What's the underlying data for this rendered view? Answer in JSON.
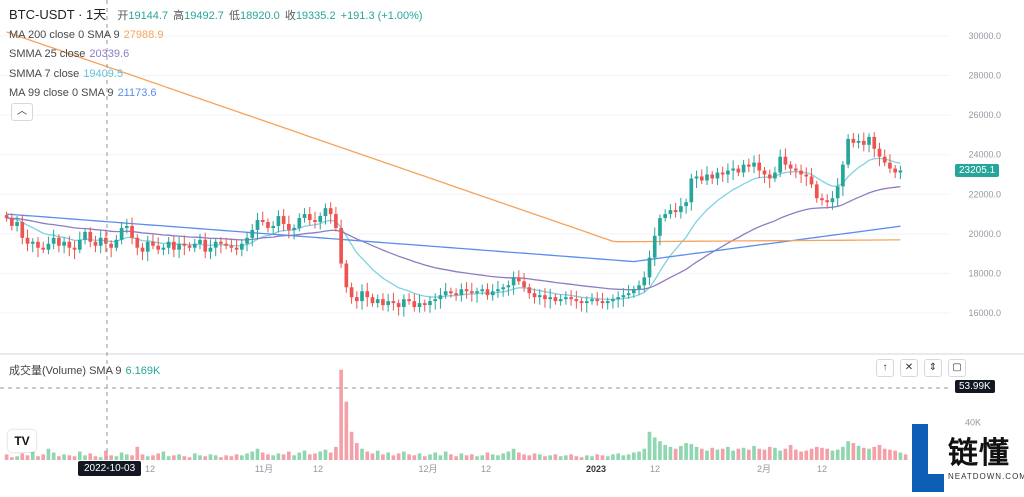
{
  "header": {
    "symbol": "BTC-USDT · 1天",
    "open_label": "开",
    "open": "19144.7",
    "high_label": "高",
    "high": "19492.7",
    "low_label": "低",
    "low": "18920.0",
    "close_label": "收",
    "close": "19335.2",
    "change": "+191.3 (+1.00%)"
  },
  "indicators": [
    {
      "label": "MA 200 close 0 SMA 9",
      "value": "27988.9",
      "color": "#f7a35c"
    },
    {
      "label": "SMMA 25 close",
      "value": "20339.6",
      "color": "#8e7cc3"
    },
    {
      "label": "SMMA 7 close",
      "value": "19409.5",
      "color": "#7ed3e3"
    },
    {
      "label": "MA 99 close 0 SMA 9",
      "value": "21173.6",
      "color": "#5b8def"
    }
  ],
  "collapse_icon": "chevron-up-icon",
  "volume_header": {
    "label": "成交量(Volume)",
    "sma": "SMA 9",
    "value": "6.169K"
  },
  "volume_buttons": [
    "arrow-up-icon",
    "close-icon",
    "collapse-icon",
    "maximize-icon"
  ],
  "price_tag": "23205.1",
  "volume_tag": "53.99K",
  "crosshair_date": "2022-10-03",
  "logo": {
    "mark": "L",
    "cn": "链懂",
    "en": "NEATDOWN.COM"
  },
  "tv_mark": "TV",
  "colors": {
    "up": "#26a69a",
    "down": "#ef5350",
    "up_vol": "#90d7b1",
    "down_vol": "#f4a0a8"
  },
  "chart_data": [
    {
      "type": "candlestick",
      "title": "BTC-USDT · 1天",
      "y_ticks": [
        "30000.0",
        "28000.0",
        "26000.0",
        "24000.0",
        "22000.0",
        "20000.0",
        "18000.0",
        "16000.0"
      ],
      "ylim": [
        14000,
        31000
      ],
      "x_ticks": [
        "12",
        "11月",
        "12",
        "12月",
        "12",
        "2023",
        "12",
        "2月",
        "12"
      ],
      "close": [
        20800,
        20400,
        20600,
        19800,
        19500,
        19600,
        19300,
        19200,
        19500,
        19800,
        19400,
        19600,
        19300,
        19200,
        19700,
        20100,
        19600,
        19400,
        19800,
        19500,
        19300,
        19700,
        20300,
        20400,
        19800,
        19300,
        19100,
        19600,
        19400,
        19200,
        19300,
        19600,
        19200,
        19500,
        19400,
        19300,
        19500,
        19700,
        19100,
        19300,
        19600,
        19500,
        19400,
        19300,
        19200,
        19500,
        19800,
        20200,
        20700,
        20600,
        20300,
        20400,
        20900,
        20500,
        20200,
        20300,
        20800,
        21000,
        20700,
        20600,
        20900,
        21300,
        21000,
        20300,
        18500,
        17300,
        16800,
        16600,
        17100,
        16800,
        16500,
        16700,
        16400,
        16600,
        16500,
        16300,
        16700,
        16600,
        16300,
        16500,
        16400,
        16600,
        16700,
        16900,
        17100,
        17000,
        16900,
        17200,
        17100,
        17000,
        17100,
        17200,
        16900,
        17100,
        17200,
        17300,
        17400,
        17800,
        17600,
        17300,
        17000,
        16800,
        16900,
        16700,
        16800,
        16600,
        16700,
        16800,
        16700,
        16600,
        16500,
        16600,
        16700,
        16600,
        16500,
        16600,
        16700,
        16800,
        16900,
        17000,
        17200,
        17400,
        17800,
        18800,
        19900,
        20800,
        21000,
        21200,
        21100,
        21400,
        21600,
        22800,
        22900,
        22700,
        23000,
        22800,
        23100,
        23000,
        23200,
        23300,
        23100,
        23500,
        23400,
        23600,
        23200,
        23000,
        22800,
        23100,
        23900,
        23500,
        23300,
        23200,
        23000,
        22900,
        22500,
        21800,
        21700,
        21600,
        21800,
        22400,
        23500,
        24800,
        24600,
        24700,
        24500,
        24900,
        24300,
        23900,
        23600,
        23300,
        23100,
        23205
      ]
    },
    {
      "type": "bar",
      "title": "成交量(Volume)",
      "y_ticks": [
        "40K"
      ],
      "ylim": [
        0,
        105
      ],
      "values": [
        6,
        3,
        4,
        7,
        5,
        9,
        4,
        6,
        12,
        8,
        4,
        6,
        5,
        4,
        9,
        5,
        7,
        4,
        3,
        10,
        5,
        4,
        8,
        6,
        5,
        14,
        6,
        4,
        5,
        7,
        9,
        4,
        5,
        6,
        4,
        3,
        7,
        5,
        4,
        6,
        5,
        3,
        5,
        4,
        6,
        5,
        7,
        9,
        12,
        8,
        6,
        5,
        7,
        6,
        9,
        5,
        8,
        10,
        6,
        7,
        9,
        11,
        8,
        14,
        96,
        62,
        30,
        18,
        12,
        9,
        7,
        10,
        6,
        8,
        5,
        7,
        9,
        6,
        5,
        7,
        4,
        6,
        8,
        5,
        9,
        6,
        4,
        7,
        5,
        6,
        4,
        5,
        8,
        6,
        5,
        7,
        9,
        12,
        8,
        6,
        5,
        7,
        6,
        4,
        5,
        6,
        4,
        5,
        6,
        4,
        3,
        5,
        4,
        6,
        5,
        4,
        6,
        7,
        5,
        6,
        8,
        9,
        12,
        30,
        24,
        20,
        16,
        14,
        12,
        15,
        18,
        17,
        14,
        12,
        10,
        13,
        11,
        12,
        14,
        10,
        12,
        13,
        11,
        15,
        12,
        11,
        14,
        13,
        10,
        12,
        16,
        11,
        9,
        10,
        12,
        14,
        13,
        12,
        10,
        11,
        14,
        20,
        18,
        15,
        13,
        12,
        14,
        16,
        12,
        11,
        10,
        8,
        6
      ],
      "sma_label": "SMA 9"
    }
  ]
}
